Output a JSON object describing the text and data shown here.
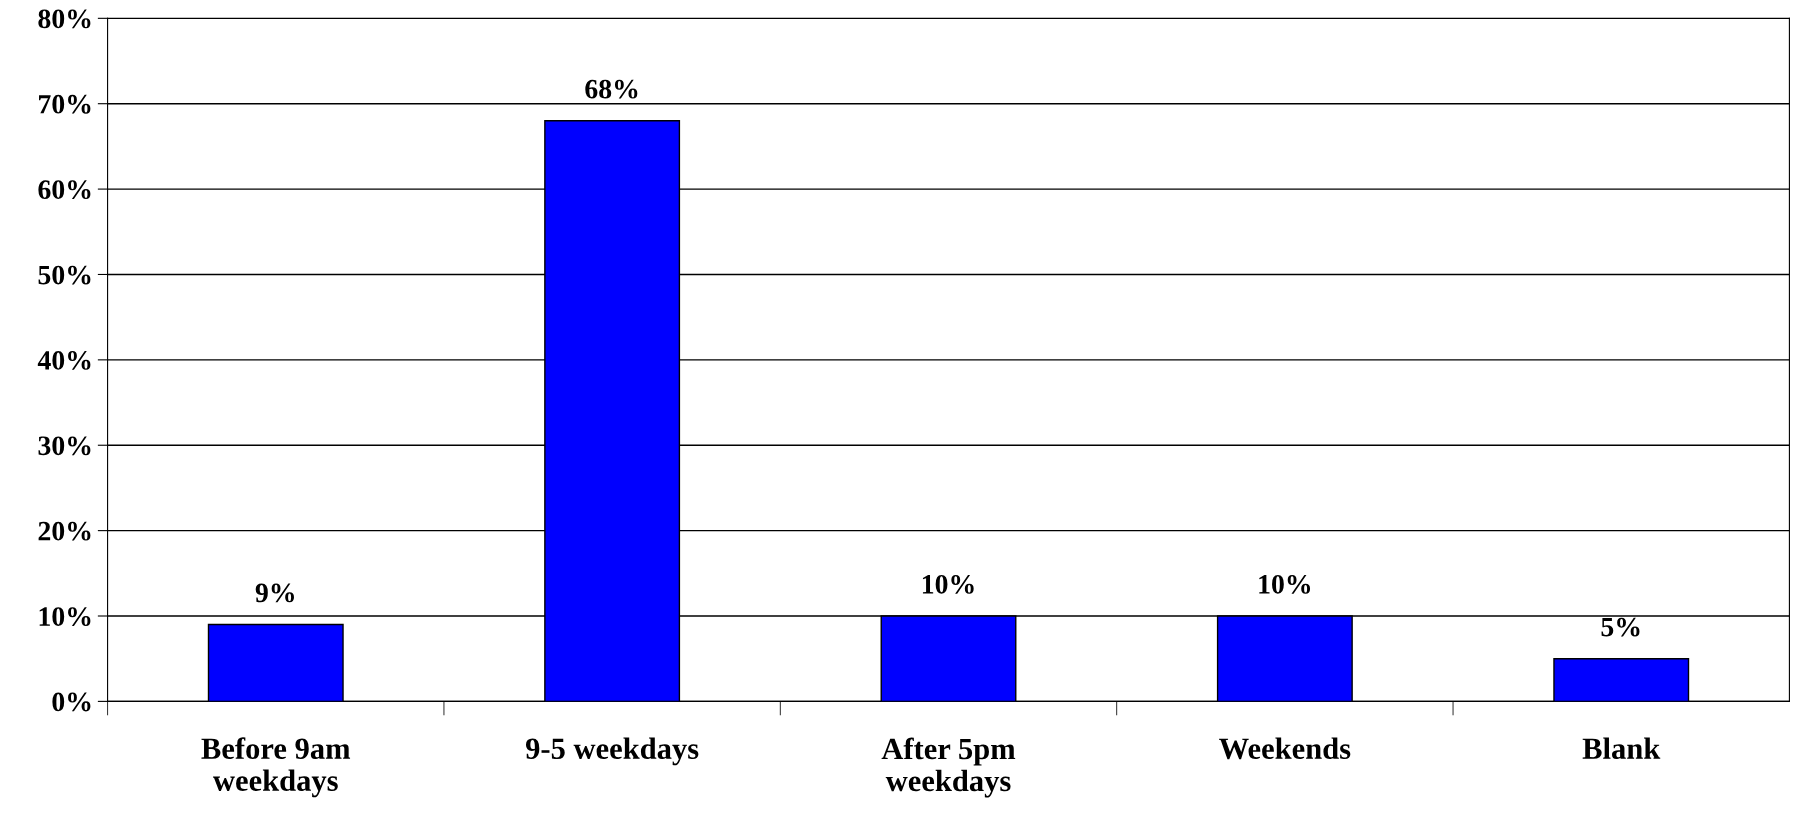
{
  "chart_data": {
    "type": "bar",
    "categories": [
      "Before 9am\nweekdays",
      "9-5 weekdays",
      "After 5pm\nweekdays",
      "Weekends",
      "Blank"
    ],
    "values": [
      9,
      68,
      10,
      10,
      5
    ],
    "value_labels": [
      "9%",
      "68%",
      "10%",
      "10%",
      "5%"
    ],
    "color": "#0000ff",
    "ylim": [
      0,
      80
    ],
    "yticks": [
      {
        "value": 0,
        "label": "0%"
      },
      {
        "value": 10,
        "label": "10%"
      },
      {
        "value": 20,
        "label": "20%"
      },
      {
        "value": 30,
        "label": "30%"
      },
      {
        "value": 40,
        "label": "40%"
      },
      {
        "value": 50,
        "label": "50%"
      },
      {
        "value": 60,
        "label": "60%"
      },
      {
        "value": 70,
        "label": "70%"
      },
      {
        "value": 80,
        "label": "80%"
      }
    ],
    "grid": "y",
    "legend": false
  }
}
